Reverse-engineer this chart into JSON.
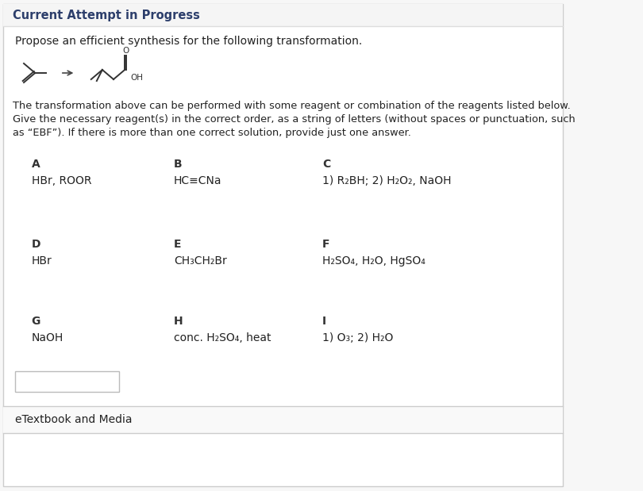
{
  "bg_color": "#ffffff",
  "page_bg": "#f7f7f7",
  "title": "Current Attempt in Progress",
  "title_fontsize": 10.5,
  "title_color": "#2c3e6b",
  "subtitle": "Propose an efficient synthesis for the following transformation.",
  "subtitle_fontsize": 10,
  "body_text1": "The transformation above can be performed with some reagent or combination of the reagents listed below.",
  "body_text2": "Give the necessary reagent(s) in the correct order, as a string of letters (without spaces or punctuation, such",
  "body_text3": "as “EBF”). If there is more than one correct solution, provide just one answer.",
  "reagents": [
    {
      "label": "A",
      "text": "HBr, ROOR",
      "col": 0,
      "row": 0
    },
    {
      "label": "B",
      "text": "HC≡CNa",
      "col": 1,
      "row": 0
    },
    {
      "label": "C",
      "text": "1) R₂BH; 2) H₂O₂, NaOH",
      "col": 2,
      "row": 0
    },
    {
      "label": "D",
      "text": "HBr",
      "col": 0,
      "row": 1
    },
    {
      "label": "E",
      "text": "CH₃CH₂Br",
      "col": 1,
      "row": 1
    },
    {
      "label": "F",
      "text": "H₂SO₄, H₂O, HgSO₄",
      "col": 2,
      "row": 1
    },
    {
      "label": "G",
      "text": "NaOH",
      "col": 0,
      "row": 2
    },
    {
      "label": "H",
      "text": "conc. H₂SO₄, heat",
      "col": 1,
      "row": 2
    },
    {
      "label": "I",
      "text": "1) O₃; 2) H₂O",
      "col": 2,
      "row": 2
    }
  ],
  "footer": "eTextbook and Media",
  "footer_fontsize": 10,
  "text_color": "#222222",
  "label_color": "#333333"
}
